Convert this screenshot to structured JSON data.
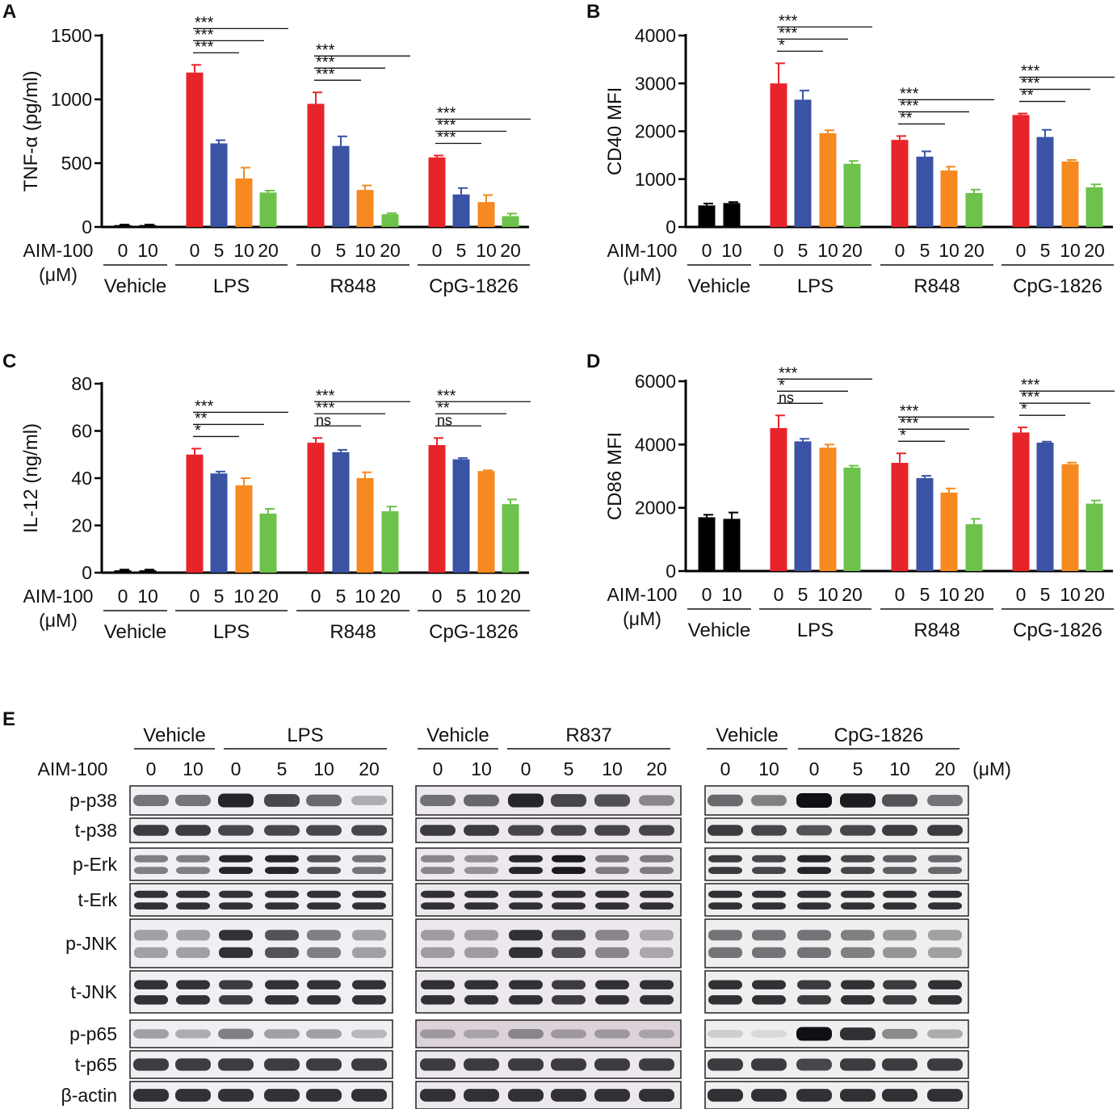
{
  "colors": {
    "vehicle": "#000000",
    "dose0": "#e8242b",
    "dose5": "#3a53a4",
    "dose10": "#f6891f",
    "dose20": "#6cc24a",
    "axis": "#000000"
  },
  "chart_data": [
    {
      "type": "bar",
      "panel_label": "A",
      "ylabel": "TNF-α (pg/ml)",
      "ylim": [
        0,
        1500
      ],
      "yticks": [
        "0",
        "500",
        "1000",
        "1500"
      ],
      "row_label_line1": "AIM-100",
      "row_label_line2": "(μM)",
      "groups": [
        {
          "name": "Vehicle",
          "doses": [
            "0",
            "10"
          ],
          "values": [
            15,
            15
          ],
          "errors": [
            4,
            4
          ],
          "sig": []
        },
        {
          "name": "LPS",
          "doses": [
            "0",
            "5",
            "10",
            "20"
          ],
          "values": [
            1210,
            655,
            380,
            270
          ],
          "errors": [
            60,
            25,
            85,
            15
          ],
          "sig": [
            "***",
            "***",
            "***"
          ]
        },
        {
          "name": "R848",
          "doses": [
            "0",
            "5",
            "10",
            "20"
          ],
          "values": [
            965,
            635,
            290,
            100
          ],
          "errors": [
            90,
            75,
            35,
            8
          ],
          "sig": [
            "***",
            "***",
            "***"
          ]
        },
        {
          "name": "CpG-1826",
          "doses": [
            "0",
            "5",
            "10",
            "20"
          ],
          "values": [
            545,
            255,
            195,
            85
          ],
          "errors": [
            15,
            50,
            55,
            20
          ],
          "sig": [
            "***",
            "***",
            "***"
          ]
        }
      ]
    },
    {
      "type": "bar",
      "panel_label": "B",
      "ylabel": "CD40 MFI",
      "ylim": [
        0,
        4000
      ],
      "yticks": [
        "0",
        "1000",
        "2000",
        "3000",
        "4000"
      ],
      "row_label_line1": "AIM-100",
      "row_label_line2": "(μM)",
      "groups": [
        {
          "name": "Vehicle",
          "doses": [
            "0",
            "10"
          ],
          "values": [
            450,
            500
          ],
          "errors": [
            40,
            20
          ],
          "sig": []
        },
        {
          "name": "LPS",
          "doses": [
            "0",
            "5",
            "10",
            "20"
          ],
          "values": [
            3000,
            2660,
            1960,
            1320
          ],
          "errors": [
            420,
            190,
            60,
            60
          ],
          "sig": [
            "*",
            "***",
            "***"
          ]
        },
        {
          "name": "R848",
          "doses": [
            "0",
            "5",
            "10",
            "20"
          ],
          "values": [
            1820,
            1470,
            1180,
            710
          ],
          "errors": [
            80,
            110,
            80,
            70
          ],
          "sig": [
            "**",
            "***",
            "***"
          ]
        },
        {
          "name": "CpG-1826",
          "doses": [
            "0",
            "5",
            "10",
            "20"
          ],
          "values": [
            2340,
            1880,
            1370,
            830
          ],
          "errors": [
            30,
            150,
            30,
            60
          ],
          "sig": [
            "**",
            "***",
            "***"
          ]
        }
      ]
    },
    {
      "type": "bar",
      "panel_label": "C",
      "ylabel": "IL-12 (ng/ml)",
      "ylim": [
        0,
        80
      ],
      "yticks": [
        "0",
        "20",
        "40",
        "60",
        "80"
      ],
      "row_label_line1": "AIM-100",
      "row_label_line2": "(μM)",
      "groups": [
        {
          "name": "Vehicle",
          "doses": [
            "0",
            "10"
          ],
          "values": [
            1,
            1
          ],
          "errors": [
            0.3,
            0.3
          ],
          "sig": []
        },
        {
          "name": "LPS",
          "doses": [
            "0",
            "5",
            "10",
            "20"
          ],
          "values": [
            50,
            42,
            37,
            25
          ],
          "errors": [
            2.5,
            0.8,
            3,
            2
          ],
          "sig": [
            "*",
            "**",
            "***"
          ]
        },
        {
          "name": "R848",
          "doses": [
            "0",
            "5",
            "10",
            "20"
          ],
          "values": [
            55,
            51,
            40,
            26
          ],
          "errors": [
            2,
            1,
            2.5,
            2
          ],
          "sig": [
            "ns",
            "***",
            "***"
          ]
        },
        {
          "name": "CpG-1826",
          "doses": [
            "0",
            "5",
            "10",
            "20"
          ],
          "values": [
            54,
            48,
            43,
            29
          ],
          "errors": [
            3,
            0.5,
            0.3,
            2
          ],
          "sig": [
            "ns",
            "**",
            "***"
          ]
        }
      ]
    },
    {
      "type": "bar",
      "panel_label": "D",
      "ylabel": "CD86 MFI",
      "ylim": [
        0,
        6000
      ],
      "yticks": [
        "0",
        "2000",
        "4000",
        "6000"
      ],
      "row_label_line1": "AIM-100",
      "row_label_line2": "(μM)",
      "groups": [
        {
          "name": "Vehicle",
          "doses": [
            "0",
            "10"
          ],
          "values": [
            1700,
            1650
          ],
          "errors": [
            80,
            200
          ],
          "sig": []
        },
        {
          "name": "LPS",
          "doses": [
            "0",
            "5",
            "10",
            "20"
          ],
          "values": [
            4520,
            4100,
            3900,
            3270
          ],
          "errors": [
            400,
            80,
            100,
            60
          ],
          "sig": [
            "ns",
            "*",
            "***"
          ]
        },
        {
          "name": "R848",
          "doses": [
            "0",
            "5",
            "10",
            "20"
          ],
          "values": [
            3420,
            2940,
            2480,
            1480
          ],
          "errors": [
            300,
            70,
            130,
            170
          ],
          "sig": [
            "*",
            "***",
            "***"
          ]
        },
        {
          "name": "CpG-1826",
          "doses": [
            "0",
            "5",
            "10",
            "20"
          ],
          "values": [
            4380,
            4060,
            3380,
            2130
          ],
          "errors": [
            160,
            30,
            50,
            100
          ],
          "sig": [
            "*",
            "***",
            "***"
          ]
        }
      ]
    }
  ],
  "blot": {
    "panel_label": "E",
    "row_label": "AIM-100",
    "unit": "(μM)",
    "rows": [
      "p-p38",
      "t-p38",
      "p-Erk",
      "t-Erk",
      "p-JNK",
      "t-JNK",
      "p-p65",
      "t-p65",
      "β-actin"
    ],
    "blocks": [
      {
        "headers": [
          "Vehicle",
          "LPS"
        ],
        "doses": [
          "0",
          "10",
          "0",
          "5",
          "10",
          "20"
        ]
      },
      {
        "headers": [
          "Vehicle",
          "R837"
        ],
        "doses": [
          "0",
          "10",
          "0",
          "5",
          "10",
          "20"
        ]
      },
      {
        "headers": [
          "Vehicle",
          "CpG-1826"
        ],
        "doses": [
          "0",
          "10",
          "0",
          "5",
          "10",
          "20"
        ]
      }
    ]
  }
}
